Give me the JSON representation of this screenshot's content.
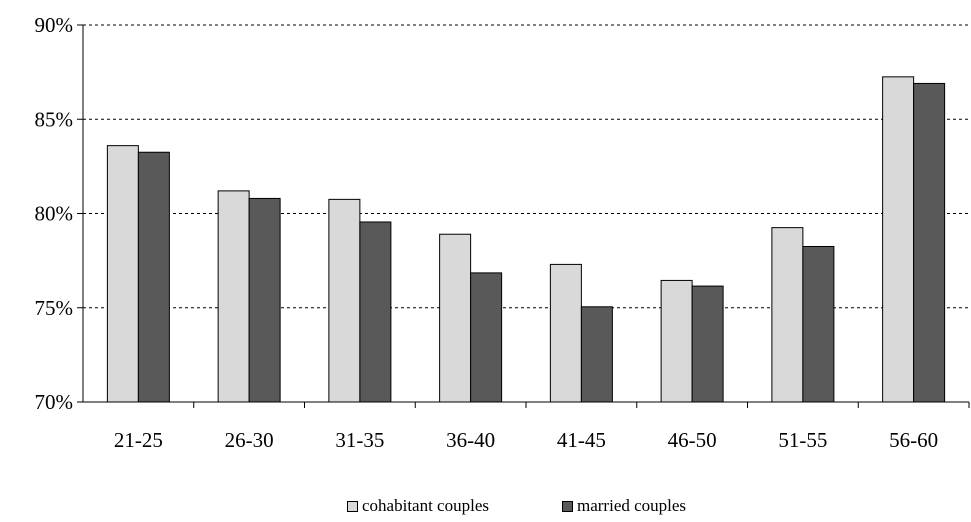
{
  "chart_data": {
    "type": "bar",
    "title": "",
    "xlabel": "",
    "ylabel": "",
    "categories": [
      "21-25",
      "26-30",
      "31-35",
      "36-40",
      "41-45",
      "46-50",
      "51-55",
      "56-60"
    ],
    "series": [
      {
        "name": "cohabitant couples",
        "color": "#d9d9d9",
        "values": [
          83.6,
          81.2,
          80.75,
          78.9,
          77.3,
          76.45,
          79.25,
          87.25
        ]
      },
      {
        "name": "married couples",
        "color": "#595959",
        "values": [
          83.25,
          80.8,
          79.55,
          76.85,
          75.05,
          76.15,
          78.25,
          86.9
        ]
      }
    ],
    "ylim": [
      70,
      90
    ],
    "yticks": [
      70,
      75,
      80,
      85,
      90
    ],
    "ytick_labels": [
      "70%",
      "75%",
      "80%",
      "85%",
      "90%"
    ],
    "grid": "horizontal dashed",
    "legend_position": "bottom"
  }
}
